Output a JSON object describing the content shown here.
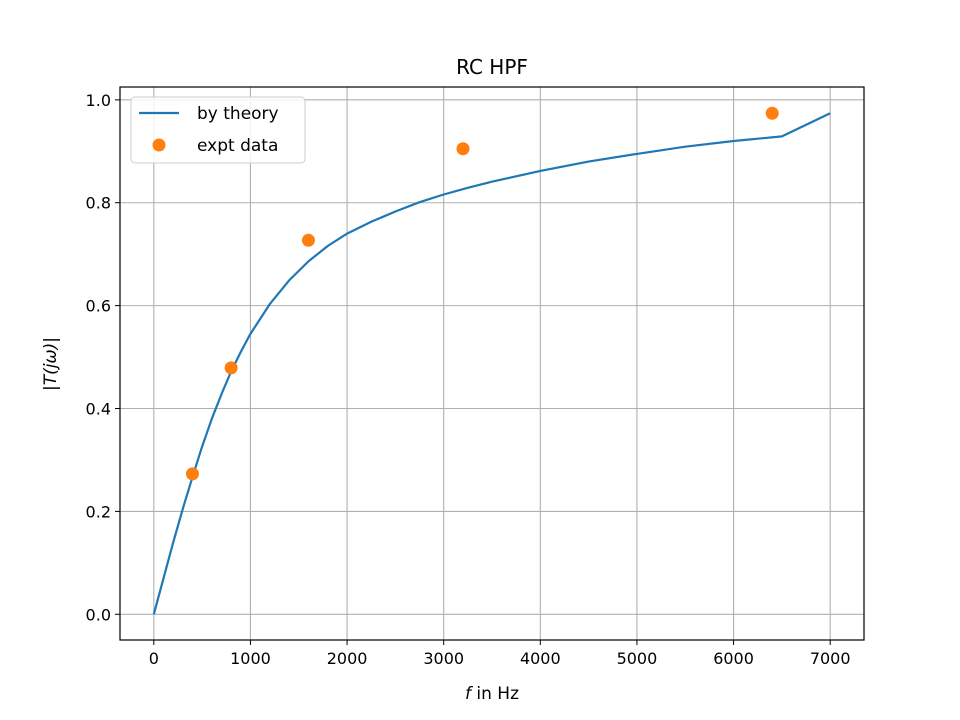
{
  "chart_data": {
    "type": "line",
    "title": "RC HPF",
    "xlabel": {
      "italic": "f",
      "rest": " in Hz"
    },
    "ylabel": "|T(jω)|",
    "xlim": [
      -350,
      7350
    ],
    "ylim": [
      -0.05,
      1.025
    ],
    "xticks": [
      0,
      1000,
      2000,
      3000,
      4000,
      5000,
      6000,
      7000
    ],
    "xtick_labels": [
      "0",
      "1000",
      "2000",
      "3000",
      "4000",
      "5000",
      "6000",
      "7000"
    ],
    "yticks": [
      0.0,
      0.2,
      0.4,
      0.6,
      0.8,
      1.0
    ],
    "ytick_labels": [
      "0.0",
      "0.2",
      "0.4",
      "0.6",
      "0.8",
      "1.0"
    ],
    "grid": true,
    "legend_position": "top-left",
    "series": [
      {
        "name": "by theory",
        "kind": "line",
        "color": "#1f77b4",
        "x": [
          0,
          100,
          200,
          300,
          400,
          500,
          600,
          700,
          800,
          900,
          1000,
          1200,
          1400,
          1600,
          1800,
          2000,
          2250,
          2500,
          2750,
          3000,
          3250,
          3500,
          4000,
          4500,
          5000,
          5500,
          6000,
          6500,
          7000
        ],
        "y": [
          0.0,
          0.07,
          0.139,
          0.205,
          0.267,
          0.326,
          0.38,
          0.428,
          0.472,
          0.51,
          0.545,
          0.603,
          0.649,
          0.686,
          0.716,
          0.74,
          0.763,
          0.783,
          0.801,
          0.816,
          0.829,
          0.841,
          0.862,
          0.88,
          0.895,
          0.909,
          0.92,
          0.929,
          0.974
        ]
      },
      {
        "name": "expt data",
        "kind": "scatter",
        "color": "#ff7f0e",
        "x": [
          400,
          800,
          1600,
          3200,
          6400
        ],
        "y": [
          0.273,
          0.479,
          0.727,
          0.905,
          0.974
        ]
      }
    ]
  }
}
